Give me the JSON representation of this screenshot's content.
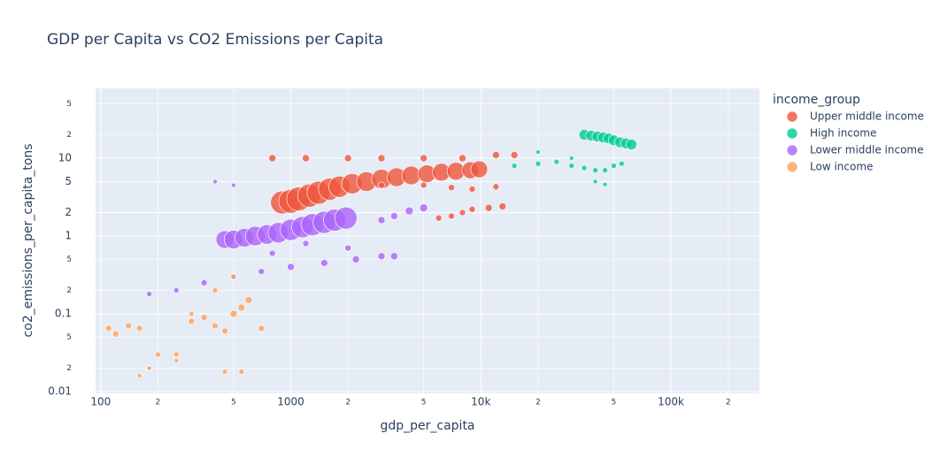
{
  "chart_data": {
    "type": "scatter",
    "title": "GDP per Capita vs CO2 Emissions per Capita",
    "x_label": "gdp_per_capita",
    "y_label": "co2_emissions_per_capita_tons",
    "legend_title": "income_group",
    "log_x": true,
    "log_y": true,
    "grid": true,
    "xlim": [
      94,
      292000
    ],
    "ylim": [
      0.0095,
      79
    ],
    "xticks": [
      100,
      {
        "value": 200,
        "label": "2"
      },
      {
        "value": 500,
        "label": "5"
      },
      1000,
      {
        "value": 2000,
        "label": "2"
      },
      {
        "value": 5000,
        "label": "5"
      },
      {
        "value": 10000,
        "label": "10k"
      },
      {
        "value": 20000,
        "label": "2"
      },
      {
        "value": 50000,
        "label": "5"
      },
      {
        "value": 100000,
        "label": "100k"
      },
      {
        "value": 200000,
        "label": "2"
      }
    ],
    "yticks": [
      0.01,
      {
        "value": 0.02,
        "label": "2"
      },
      {
        "value": 0.05,
        "label": "5"
      },
      0.1,
      {
        "value": 0.2,
        "label": "2"
      },
      {
        "value": 0.5,
        "label": "5"
      },
      1,
      2,
      5,
      10,
      {
        "value": 20,
        "label": "2"
      },
      {
        "value": 50,
        "label": "5"
      }
    ],
    "series": [
      {
        "name": "Upper middle income",
        "color": "#EF553B",
        "x": [
          900,
          1000,
          1100,
          1250,
          1400,
          1600,
          1800,
          2100,
          2500,
          3000,
          3600,
          4300,
          5200,
          6200,
          7400,
          8800,
          9800,
          800,
          1200,
          2000,
          3000,
          5000,
          8000,
          12000,
          15000,
          3000,
          5000,
          7000,
          9000,
          12000,
          6000,
          7000,
          8000,
          9000,
          11000,
          13000
        ],
        "values": [
          2.7,
          2.8,
          3.0,
          3.3,
          3.6,
          4.0,
          4.3,
          4.7,
          5.0,
          5.4,
          5.7,
          6.0,
          6.3,
          6.6,
          6.8,
          7.0,
          7.2,
          10,
          10,
          10,
          10,
          10,
          10,
          11,
          11,
          4.5,
          4.5,
          4.2,
          4.0,
          4.3,
          1.7,
          1.8,
          2.0,
          2.2,
          2.3,
          2.4
        ],
        "sizes": [
          26,
          27,
          27,
          26,
          26,
          25,
          24,
          23,
          22,
          22,
          21,
          21,
          20,
          20,
          20,
          19,
          19,
          8,
          8,
          8,
          8,
          8,
          8,
          8,
          8,
          7,
          7,
          7,
          7,
          7,
          7,
          7,
          7,
          7,
          8,
          8
        ]
      },
      {
        "name": "High income",
        "color": "#00CC96",
        "x": [
          35000,
          38000,
          41000,
          44000,
          47000,
          50000,
          54000,
          58000,
          62000,
          15000,
          20000,
          25000,
          30000,
          35000,
          40000,
          45000,
          50000,
          55000,
          20000,
          30000,
          40000,
          45000
        ],
        "values": [
          20,
          19.5,
          19,
          18.5,
          18,
          17,
          16,
          15.5,
          15,
          8,
          8.5,
          9,
          8,
          7.5,
          7,
          7,
          8,
          8.5,
          12,
          10,
          5,
          4.6
        ],
        "sizes": [
          12,
          12,
          12,
          12,
          12,
          12,
          12,
          12,
          12,
          6,
          6,
          6,
          6,
          6,
          6,
          6,
          6,
          6,
          5,
          5,
          5,
          5
        ]
      },
      {
        "name": "Lower middle income",
        "color": "#AB63FA",
        "x": [
          450,
          500,
          570,
          650,
          750,
          860,
          1000,
          1150,
          1300,
          1500,
          1700,
          1950,
          180,
          250,
          350,
          500,
          700,
          1000,
          1500,
          2200,
          3000,
          3500,
          3000,
          3500,
          4200,
          5000,
          400,
          500,
          800,
          1200,
          2000
        ],
        "values": [
          0.9,
          0.9,
          0.95,
          1.0,
          1.05,
          1.1,
          1.2,
          1.3,
          1.4,
          1.5,
          1.6,
          1.7,
          0.18,
          0.2,
          0.25,
          0.3,
          0.35,
          0.4,
          0.45,
          0.5,
          0.55,
          0.55,
          1.6,
          1.8,
          2.1,
          2.3,
          5,
          4.5,
          0.6,
          0.8,
          0.7
        ],
        "sizes": [
          20,
          21,
          21,
          22,
          22,
          23,
          24,
          24,
          25,
          25,
          25,
          25,
          6,
          6,
          7,
          7,
          7,
          8,
          8,
          8,
          8,
          8,
          8,
          8,
          9,
          9,
          5,
          5,
          7,
          7,
          7
        ]
      },
      {
        "name": "Low income",
        "color": "#FFA15A",
        "x": [
          110,
          120,
          140,
          160,
          180,
          200,
          250,
          300,
          350,
          400,
          450,
          500,
          550,
          600,
          700,
          160,
          180,
          250,
          300,
          400,
          500,
          450,
          550
        ],
        "values": [
          0.065,
          0.055,
          0.07,
          0.065,
          0.02,
          0.03,
          0.03,
          0.08,
          0.09,
          0.07,
          0.06,
          0.1,
          0.12,
          0.15,
          0.065,
          0.016,
          0.02,
          0.025,
          0.1,
          0.2,
          0.3,
          0.018,
          0.018
        ],
        "sizes": [
          7,
          7,
          7,
          7,
          6,
          6,
          6,
          7,
          7,
          7,
          7,
          8,
          8,
          8,
          7,
          5,
          5,
          5,
          6,
          6,
          6,
          6,
          6
        ]
      }
    ]
  }
}
